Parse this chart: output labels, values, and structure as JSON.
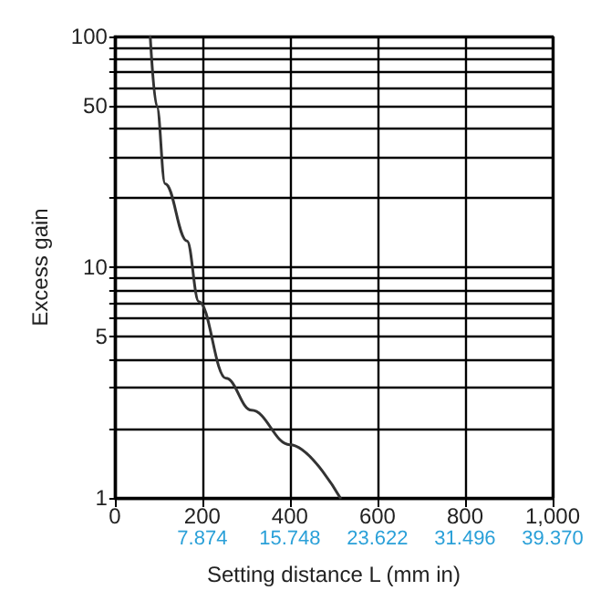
{
  "chart_data": {
    "type": "line",
    "xlabel": "Setting distance L (mm in)",
    "ylabel": "Excess gain",
    "x": [
      81,
      96,
      115,
      165,
      192,
      254,
      312,
      400,
      515
    ],
    "values": [
      100,
      50,
      23,
      13,
      7.1,
      3.3,
      2.4,
      1.7,
      1
    ],
    "color": "#333333",
    "xlim": [
      0,
      1000
    ],
    "xticks": [
      0,
      200,
      400,
      600,
      800,
      {
        "value": 1000,
        "label": "1,000"
      }
    ],
    "x2lim": [
      0,
      39.37
    ],
    "x2ticks": [
      {
        "value": 7.874,
        "label": "7.874"
      },
      {
        "value": 15.748,
        "label": "15.748"
      },
      {
        "value": 23.622,
        "label": "23.622"
      },
      {
        "value": 31.496,
        "label": "31.496"
      },
      {
        "value": 39.37,
        "label": "39.370"
      }
    ],
    "ylim": [
      1,
      100
    ],
    "yticks": [
      1,
      {
        "value": 2,
        "label": null
      },
      {
        "value": 3,
        "label": null
      },
      {
        "value": 4,
        "label": null
      },
      5,
      {
        "value": 6,
        "label": null
      },
      {
        "value": 7,
        "label": null
      },
      {
        "value": 8,
        "label": null
      },
      {
        "value": 9,
        "label": null
      },
      10,
      {
        "value": 20,
        "label": null
      },
      {
        "value": 30,
        "label": null
      },
      {
        "value": 40,
        "label": null
      },
      50,
      {
        "value": 60,
        "label": null
      },
      {
        "value": 70,
        "label": null
      },
      {
        "value": 80,
        "label": null
      },
      {
        "value": 90,
        "label": null
      },
      100
    ],
    "log": "y",
    "grid": true,
    "marker": "none",
    "line_style": "solid"
  }
}
